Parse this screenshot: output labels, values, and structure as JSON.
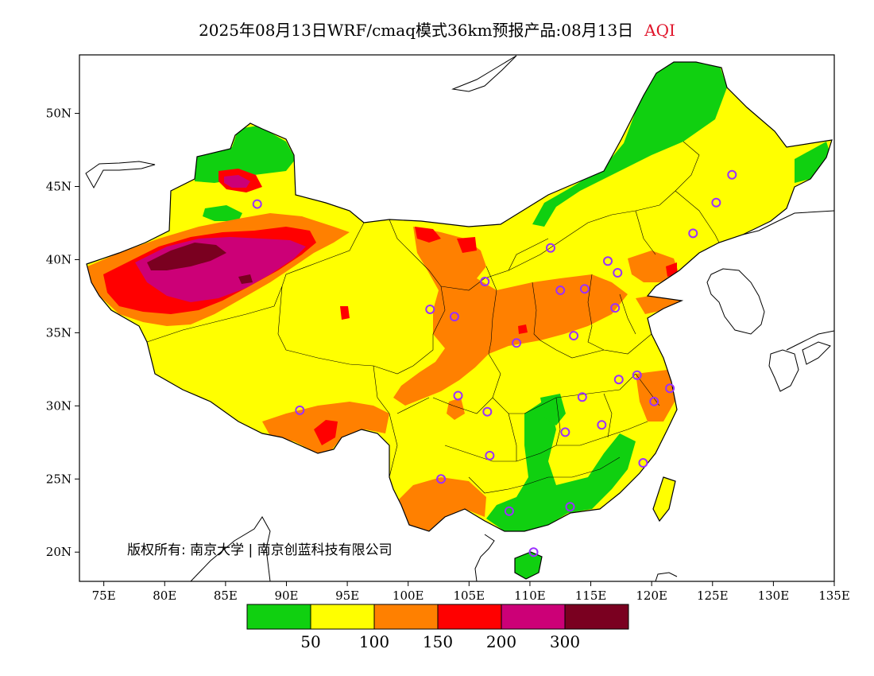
{
  "title": {
    "main": "2025年08月13日WRF/cmaq模式36km预报产品:08月13日",
    "variable": "AQI"
  },
  "copyright": "版权所有: 南京大学 | 南京创蓝科技有限公司",
  "axes": {
    "x_ticks": [
      "75E",
      "80E",
      "85E",
      "90E",
      "95E",
      "100E",
      "105E",
      "110E",
      "115E",
      "120E",
      "125E",
      "130E",
      "135E"
    ],
    "y_ticks": [
      "20N",
      "25N",
      "30N",
      "35N",
      "40N",
      "45N",
      "50N"
    ],
    "lon_range": [
      73,
      135
    ],
    "lat_range": [
      18,
      54
    ]
  },
  "legend": {
    "colors": [
      "#10d010",
      "#ffff00",
      "#ff8000",
      "#ff0000",
      "#cc0077",
      "#7a0020"
    ],
    "labels": [
      "50",
      "100",
      "150",
      "200",
      "300"
    ]
  },
  "stations": [
    [
      116.4,
      39.9
    ],
    [
      117.2,
      39.1
    ],
    [
      114.5,
      38.0
    ],
    [
      112.5,
      37.9
    ],
    [
      111.7,
      40.8
    ],
    [
      123.4,
      41.8
    ],
    [
      125.3,
      43.9
    ],
    [
      126.6,
      45.8
    ],
    [
      87.6,
      43.8
    ],
    [
      101.8,
      36.6
    ],
    [
      103.8,
      36.1
    ],
    [
      106.3,
      38.5
    ],
    [
      108.9,
      34.3
    ],
    [
      113.6,
      34.8
    ],
    [
      117.0,
      36.7
    ],
    [
      117.3,
      31.8
    ],
    [
      118.8,
      32.1
    ],
    [
      120.2,
      30.3
    ],
    [
      121.5,
      31.2
    ],
    [
      114.3,
      30.6
    ],
    [
      112.9,
      28.2
    ],
    [
      115.9,
      28.7
    ],
    [
      119.3,
      26.1
    ],
    [
      113.3,
      23.1
    ],
    [
      108.3,
      22.8
    ],
    [
      110.3,
      20.0
    ],
    [
      106.7,
      26.6
    ],
    [
      102.7,
      25.0
    ],
    [
      104.1,
      30.7
    ],
    [
      106.5,
      29.6
    ],
    [
      91.1,
      29.7
    ]
  ],
  "station_color": "#9b30ff"
}
